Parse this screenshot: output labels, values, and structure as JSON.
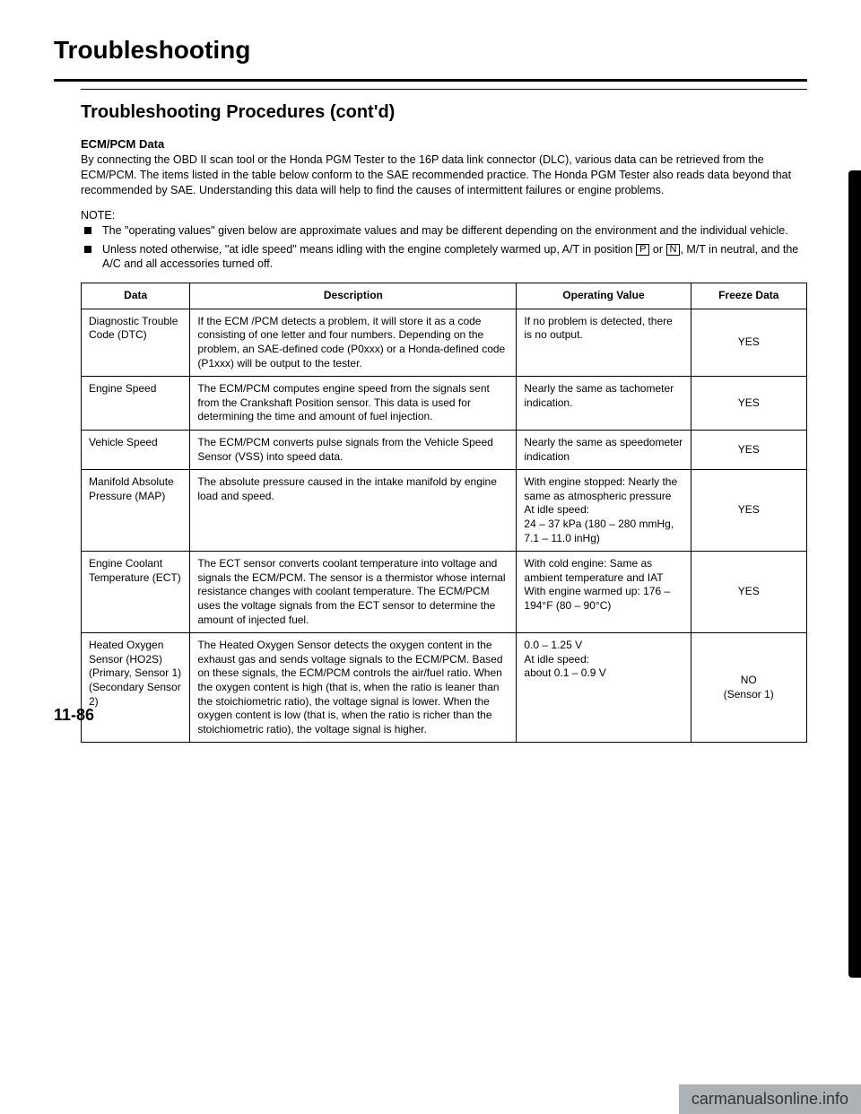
{
  "page_title": "Troubleshooting",
  "section_title": "Troubleshooting Procedures (cont'd)",
  "subhead": "ECM/PCM Data",
  "intro": "By connecting the OBD II scan tool or the Honda PGM Tester to the 16P data link connector (DLC), various data can be retrieved from the ECM/PCM. The items listed in the table below conform to the SAE recommended practice. The Honda PGM Tester also reads data beyond that recommended by SAE. Understanding this data will help to find the causes of intermittent failures or engine problems.",
  "note_label": "NOTE:",
  "notes": [
    "The \"operating values\" given below are approximate values and may be different depending on the environment and the individual vehicle.",
    "Unless noted otherwise, \"at idle speed\" means idling with the engine completely warmed up, A/T in position "
  ],
  "note2_pos1": "P",
  "note2_mid": " or ",
  "note2_pos2": "N",
  "note2_tail": ", M/T in neutral, and the A/C and all accessories turned off.",
  "table": {
    "headers": [
      "Data",
      "Description",
      "Operating Value",
      "Freeze Data"
    ],
    "rows": [
      {
        "data": "Diagnostic Trouble Code (DTC)",
        "desc": "If the ECM /PCM detects a problem, it will store it as a code consisting of one letter and four numbers. Depending on the problem, an SAE-defined code (P0xxx) or a Honda-defined code (P1xxx) will be output to the tester.",
        "op": "If no problem is detected, there is no output.",
        "fd": "YES"
      },
      {
        "data": "Engine Speed",
        "desc": "The ECM/PCM computes engine speed from the signals sent from the Crankshaft Position sensor. This data is used for determining the time and amount of fuel injection.",
        "op": "Nearly the same as tachometer indication.",
        "fd": "YES"
      },
      {
        "data": "Vehicle Speed",
        "desc": "The ECM/PCM converts pulse signals from the Vehicle Speed Sensor (VSS) into speed data.",
        "op": "Nearly the same as speedometer indication",
        "fd": "YES"
      },
      {
        "data": "Manifold Absolute Pressure (MAP)",
        "desc": "The absolute pressure caused in the intake manifold by engine load and speed.",
        "op": "With engine stopped: Nearly the same as atmospheric pressure\nAt idle speed:\n24 – 37 kPa (180 – 280 mmHg, 7.1 – 11.0 inHg)",
        "fd": "YES"
      },
      {
        "data": "Engine Coolant Temperature (ECT)",
        "desc": "The ECT sensor converts coolant temperature into voltage and signals the ECM/PCM. The sensor is a thermistor whose internal resistance changes with coolant temperature. The ECM/PCM uses the voltage signals from the ECT sensor to determine the amount of injected fuel.",
        "op": "With cold engine: Same as ambient temperature and IAT\nWith engine warmed up: 176 – 194°F (80 – 90°C)",
        "fd": "YES"
      },
      {
        "data": "Heated Oxygen Sensor (HO2S) (Primary, Sensor 1) (Secondary Sensor 2)",
        "desc": "The Heated Oxygen Sensor detects the oxygen content in the exhaust gas and sends voltage signals to the ECM/PCM. Based on these signals, the ECM/PCM controls the air/fuel ratio. When the oxygen content is high (that is, when the ratio is leaner than the stoichiometric ratio), the voltage signal is lower. When the oxygen content is low (that is, when the ratio is richer than the stoichiometric ratio), the voltage signal is higher.",
        "op": "0.0 – 1.25 V\nAt idle speed:\nabout 0.1 – 0.9 V",
        "fd": "NO\n(Sensor 1)"
      }
    ],
    "col_widths": [
      "15%",
      "45%",
      "24%",
      "16%"
    ]
  },
  "page_number": "11-86",
  "watermark": "carmanualsonline.info",
  "colors": {
    "text": "#000",
    "bg": "#fff",
    "wm": "#9aa0a6"
  }
}
